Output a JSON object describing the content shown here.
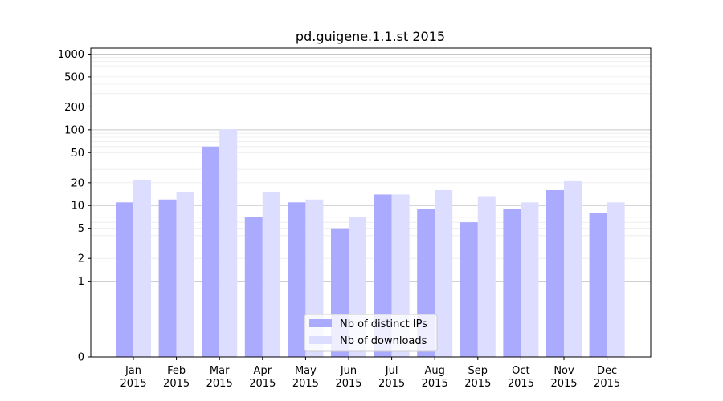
{
  "chart_data": {
    "type": "bar",
    "title": "pd.guigene.1.1.st 2015",
    "xlabel": "",
    "ylabel": "",
    "yscale": "symlog",
    "ylim": [
      0,
      1200
    ],
    "y_ticks": [
      0,
      1,
      2,
      5,
      10,
      20,
      50,
      100,
      200,
      500,
      1000
    ],
    "grid": true,
    "legend_position": "bottom-center",
    "categories": [
      [
        "Jan",
        "2015"
      ],
      [
        "Feb",
        "2015"
      ],
      [
        "Mar",
        "2015"
      ],
      [
        "Apr",
        "2015"
      ],
      [
        "May",
        "2015"
      ],
      [
        "Jun",
        "2015"
      ],
      [
        "Jul",
        "2015"
      ],
      [
        "Aug",
        "2015"
      ],
      [
        "Sep",
        "2015"
      ],
      [
        "Oct",
        "2015"
      ],
      [
        "Nov",
        "2015"
      ],
      [
        "Dec",
        "2015"
      ]
    ],
    "series": [
      {
        "name": "Nb of distinct IPs",
        "color": "#aaaaff",
        "values": [
          11,
          12,
          60,
          7,
          11,
          5,
          14,
          9,
          6,
          9,
          16,
          8
        ]
      },
      {
        "name": "Nb of downloads",
        "color": "#ddddff",
        "values": [
          22,
          15,
          102,
          15,
          12,
          7,
          14,
          16,
          13,
          11,
          21,
          11
        ]
      }
    ]
  }
}
